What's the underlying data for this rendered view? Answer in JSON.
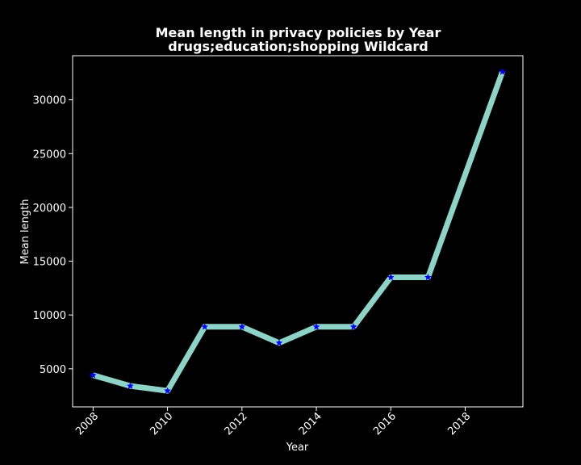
{
  "chart_data": {
    "type": "line",
    "title_line1": "Mean length in privacy policies by Year",
    "title_line2": "drugs;education;shopping Wildcard",
    "xlabel": "Year",
    "ylabel": "Mean length",
    "x": [
      2008,
      2009,
      2010,
      2011,
      2012,
      2013,
      2014,
      2015,
      2016,
      2017,
      2019
    ],
    "series": [
      {
        "values": [
          4400,
          3400,
          2950,
          8900,
          8900,
          7400,
          8900,
          8900,
          13500,
          13500,
          32600
        ],
        "line_color": "#8dd3c7",
        "marker": "star",
        "marker_color": "#0000ff"
      }
    ],
    "xlim": [
      2007.45,
      2019.55
    ],
    "ylim": [
      1460,
      34100
    ],
    "xticks": [
      2008,
      2010,
      2012,
      2014,
      2016,
      2018
    ],
    "yticks": [
      5000,
      10000,
      15000,
      20000,
      25000,
      30000
    ],
    "grid": false,
    "background": "#000000",
    "axis_color": "#ffffff"
  }
}
